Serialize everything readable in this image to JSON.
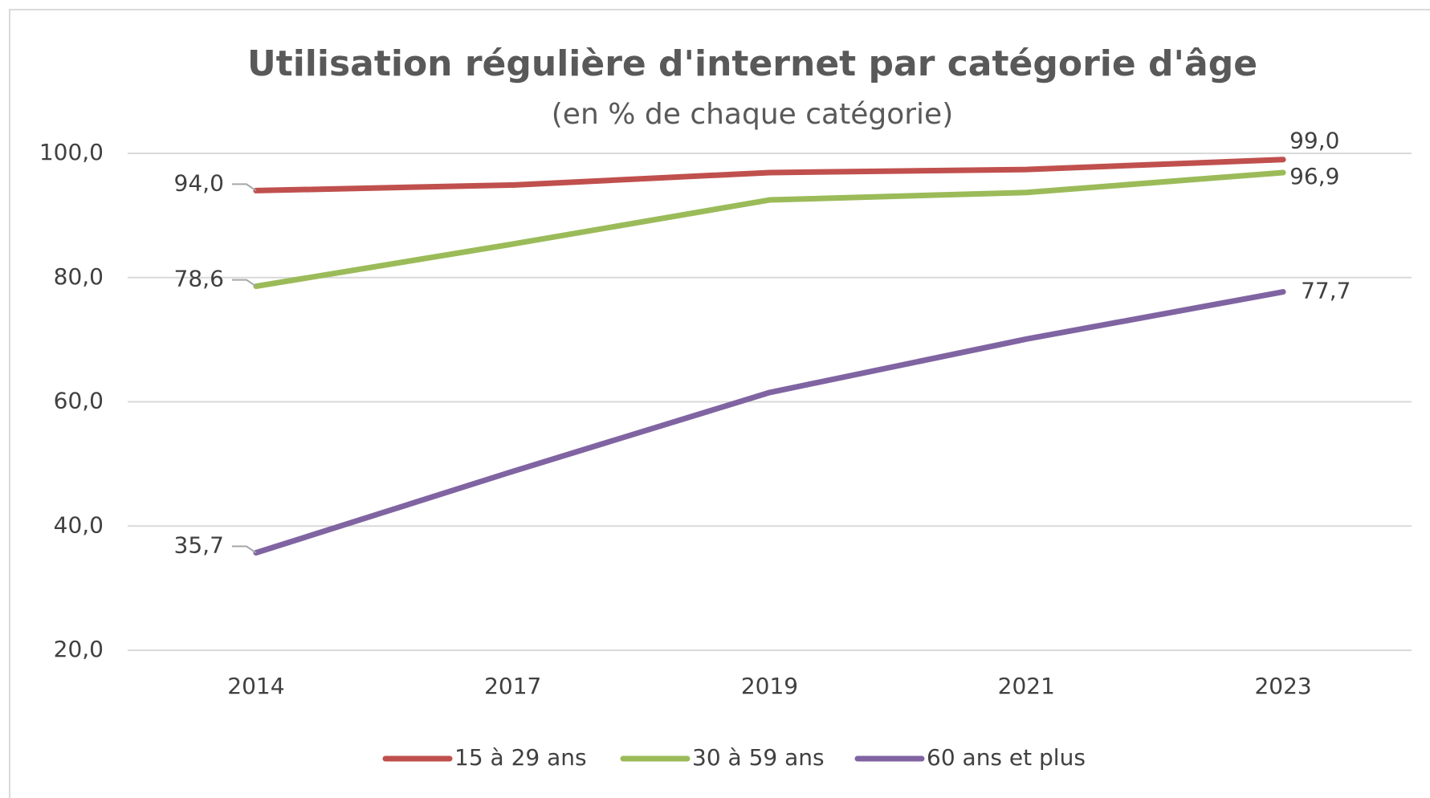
{
  "chart_data": {
    "type": "line",
    "title": "Utilisation régulière d'internet par catégorie d'âge",
    "subtitle": "(en % de chaque catégorie)",
    "categories": [
      "2014",
      "2017",
      "2019",
      "2021",
      "2023"
    ],
    "series": [
      {
        "name": "15 à 29 ans",
        "color": "#c0504d",
        "values": [
          94.0,
          94.9,
          96.9,
          97.4,
          99.0
        ],
        "value_labels": [
          "94,0",
          null,
          null,
          null,
          "99,0"
        ]
      },
      {
        "name": "30 à 59 ans",
        "color": "#9bbb59",
        "values": [
          78.6,
          85.4,
          92.5,
          93.7,
          96.9
        ],
        "value_labels": [
          "78,6",
          null,
          null,
          null,
          "96,9"
        ]
      },
      {
        "name": "60 ans et plus",
        "color": "#8064a2",
        "values": [
          35.7,
          48.8,
          61.5,
          70.1,
          77.7
        ],
        "value_labels": [
          "35,7",
          null,
          null,
          null,
          "77,7"
        ]
      }
    ],
    "ylim": [
      20,
      100
    ],
    "yticks": [
      {
        "value": 20,
        "label": "20,0"
      },
      {
        "value": 40,
        "label": "40,0"
      },
      {
        "value": 60,
        "label": "60,0"
      },
      {
        "value": 80,
        "label": "80,0"
      },
      {
        "value": 100,
        "label": "100,0"
      }
    ],
    "grid": true,
    "legend": "bottom"
  }
}
